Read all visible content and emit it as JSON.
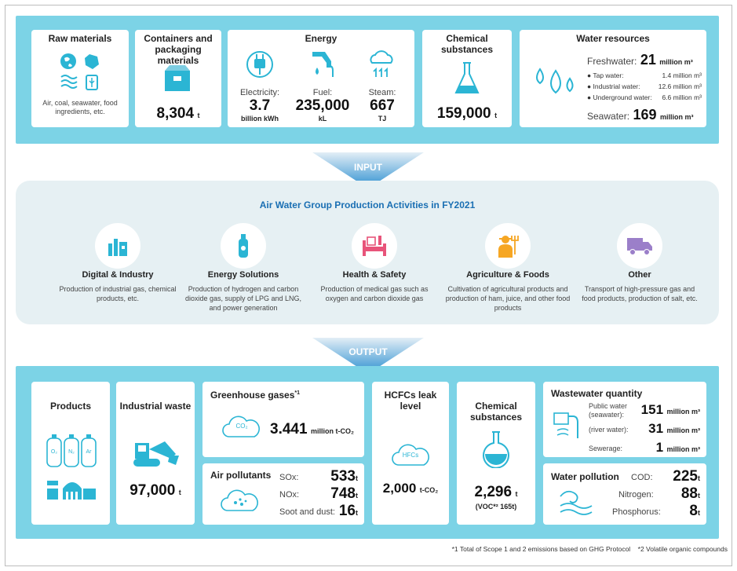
{
  "input_section": {
    "raw_materials": {
      "title": "Raw materials",
      "desc": "Air, coal, seawater, food ingredients, etc."
    },
    "containers": {
      "title": "Containers and packaging materials",
      "value": "8,304",
      "unit": "t"
    },
    "energy": {
      "title": "Energy",
      "electricity": {
        "label": "Electricity:",
        "value": "3.7",
        "unit": "billion kWh"
      },
      "fuel": {
        "label": "Fuel:",
        "value": "235,000",
        "unit": "kL"
      },
      "steam": {
        "label": "Steam:",
        "value": "667",
        "unit": "TJ"
      }
    },
    "chemical": {
      "title": "Chemical substances",
      "value": "159,000",
      "unit": "t"
    },
    "water": {
      "title": "Water resources",
      "freshwater_label": "Freshwater:",
      "freshwater_value": "21",
      "freshwater_unit": "million m³",
      "tap_label": "Tap water:",
      "tap_value": "1.4 million m³",
      "industrial_label": "Industrial water:",
      "industrial_value": "12.6 million m³",
      "underground_label": "Underground water:",
      "underground_value": "6.6 million m³",
      "seawater_label": "Seawater:",
      "seawater_value": "169",
      "seawater_unit": "million m³"
    }
  },
  "input_arrow": "INPUT",
  "activities": {
    "title": "Air Water Group Production Activities in FY2021",
    "items": [
      {
        "title": "Digital & Industry",
        "desc": "Production of industrial gas, chemical products, etc.",
        "icon": "factory-icon"
      },
      {
        "title": "Energy Solutions",
        "desc": "Production of hydrogen and carbon dioxide gas, supply of LPG and LNG, and power generation",
        "icon": "gas-cylinder-icon"
      },
      {
        "title": "Health & Safety",
        "desc": "Production of medical gas such as oxygen and carbon dioxide gas",
        "icon": "hospital-bed-icon"
      },
      {
        "title": "Agriculture & Foods",
        "desc": "Cultivation of agricultural products and production of ham, juice, and other food products",
        "icon": "farmer-icon"
      },
      {
        "title": "Other",
        "desc": "Transport of high-pressure gas and food products, production of salt, etc.",
        "icon": "truck-icon"
      }
    ]
  },
  "output_arrow": "OUTPUT",
  "output_section": {
    "products": {
      "title": "Products",
      "cyl1": "O₂",
      "cyl2": "N₂",
      "cyl3": "Ar"
    },
    "waste": {
      "title": "Industrial waste",
      "value": "97,000",
      "unit": "t"
    },
    "ghg": {
      "title": "Greenhouse gases",
      "sup": "*1",
      "icon_text": "CO₂",
      "value": "3.441",
      "unit": "million t-CO₂"
    },
    "air": {
      "title": "Air pollutants",
      "sox_label": "SOx:",
      "sox_value": "533",
      "sox_unit": "t",
      "nox_label": "NOx:",
      "nox_value": "748",
      "nox_unit": "t",
      "soot_label": "Soot and dust:",
      "soot_value": "16",
      "soot_unit": "t"
    },
    "hcfc": {
      "title": "HCFCs leak level",
      "icon_text": "HFCs",
      "value": "2,000",
      "unit": "t-CO₂"
    },
    "chem": {
      "title": "Chemical substances",
      "value": "2,296",
      "unit": "t",
      "note": "(VOC*² 165t)"
    },
    "wastewater": {
      "title": "Wastewater quantity",
      "public_label": "Public water (seawater):",
      "public_value": "151",
      "public_unit": "million m³",
      "river_label": "(river water):",
      "river_value": "31",
      "river_unit": "million m³",
      "sewer_label": "Sewerage:",
      "sewer_value": "1",
      "sewer_unit": "million m³"
    },
    "pollution": {
      "title": "Water pollution",
      "cod_label": "COD:",
      "cod_value": "225",
      "cod_unit": "t",
      "n_label": "Nitrogen:",
      "n_value": "88",
      "n_unit": "t",
      "p_label": "Phosphorus:",
      "p_value": "8",
      "p_unit": "t"
    }
  },
  "footnote": "*1 Total of Scope 1 and 2 emissions based on GHG Protocol    *2 Volatile organic compounds",
  "colors": {
    "band": "#7cd3e6",
    "icon_blue": "#2bb5d4",
    "icon_pink": "#e8547a",
    "arrow": "#2c8fd0"
  }
}
